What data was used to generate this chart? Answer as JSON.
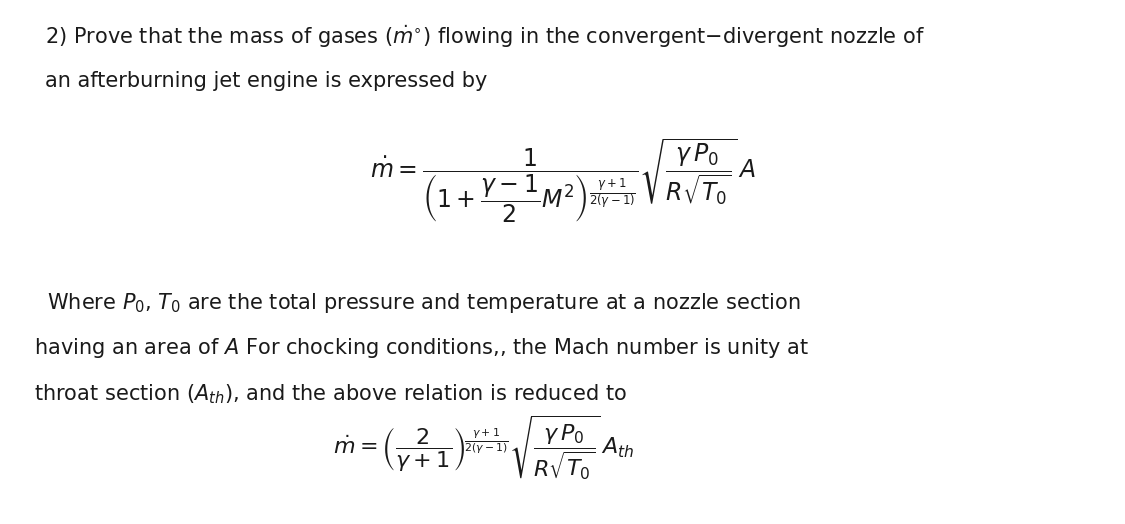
{
  "background_color": "#ffffff",
  "text_color": "#1a1a1a",
  "figsize": [
    11.25,
    5.24
  ],
  "dpi": 100,
  "title_fontsize": 15,
  "body_fontsize": 15,
  "formula1_fontsize": 17,
  "formula2_fontsize": 16
}
